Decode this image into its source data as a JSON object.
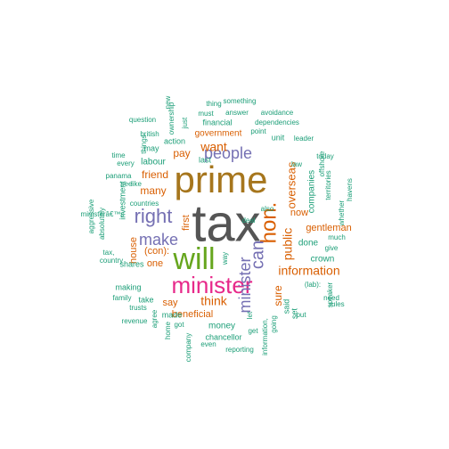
{
  "colors": {
    "dark_gray": "#555555",
    "gold": "#a6761d",
    "green": "#66a61e",
    "magenta": "#e7298a",
    "purple": "#7570b3",
    "orange": "#d95f02",
    "teal": "#1b9e77"
  },
  "words": [
    {
      "text": "tax",
      "color": "dark_gray",
      "rotated": false
    },
    {
      "text": "prime",
      "color": "gold",
      "rotated": false
    },
    {
      "text": "will",
      "color": "green",
      "rotated": false
    },
    {
      "text": "minister",
      "color": "magenta",
      "rotated": false
    },
    {
      "text": "hon.",
      "color": "orange",
      "rotated": true
    },
    {
      "text": "right",
      "color": "purple",
      "rotated": false
    },
    {
      "text": "people",
      "color": "purple",
      "rotated": false
    },
    {
      "text": "can",
      "color": "purple",
      "rotated": true
    },
    {
      "text": "make",
      "color": "purple",
      "rotated": false
    },
    {
      "text": "minister",
      "color": "purple",
      "rotated": true
    },
    {
      "text": "information",
      "color": "orange",
      "rotated": false
    },
    {
      "text": "want",
      "color": "orange",
      "rotated": false
    },
    {
      "text": "public",
      "color": "orange",
      "rotated": true
    },
    {
      "text": "think",
      "color": "orange",
      "rotated": false
    },
    {
      "text": "overseas",
      "color": "orange",
      "rotated": true
    },
    {
      "text": "many",
      "color": "orange",
      "rotated": false
    },
    {
      "text": "friend",
      "color": "orange",
      "rotated": false
    },
    {
      "text": "pay",
      "color": "orange",
      "rotated": false
    },
    {
      "text": "sure",
      "color": "orange",
      "rotated": true
    },
    {
      "text": "say",
      "color": "orange",
      "rotated": false
    },
    {
      "text": "(con):",
      "color": "orange",
      "rotated": false
    },
    {
      "text": "one",
      "color": "orange",
      "rotated": false
    },
    {
      "text": "house",
      "color": "orange",
      "rotated": true
    },
    {
      "text": "now",
      "color": "orange",
      "rotated": false
    },
    {
      "text": "gentleman",
      "color": "orange",
      "rotated": false
    },
    {
      "text": "first",
      "color": "orange",
      "rotated": true
    },
    {
      "text": "beneficial",
      "color": "orange",
      "rotated": false
    },
    {
      "text": "government",
      "color": "orange",
      "rotated": false
    },
    {
      "text": "labour",
      "color": "teal",
      "rotated": false
    },
    {
      "text": "companies",
      "color": "teal",
      "rotated": true
    },
    {
      "text": "done",
      "color": "teal",
      "rotated": false
    },
    {
      "text": "crown",
      "color": "teal",
      "rotated": false
    },
    {
      "text": "money",
      "color": "teal",
      "rotated": false
    },
    {
      "text": "set",
      "color": "teal",
      "rotated": true
    },
    {
      "text": "said",
      "color": "teal",
      "rotated": true
    },
    {
      "text": "unit",
      "color": "teal",
      "rotated": false
    },
    {
      "text": "chancellor",
      "color": "teal",
      "rotated": false
    },
    {
      "text": "investment",
      "color": "teal",
      "rotated": true
    },
    {
      "text": "shares",
      "color": "teal",
      "rotated": false
    },
    {
      "text": "making",
      "color": "teal",
      "rotated": false
    },
    {
      "text": "take",
      "color": "teal",
      "rotated": false
    },
    {
      "text": "made",
      "color": "teal",
      "rotated": false
    },
    {
      "text": "last",
      "color": "teal",
      "rotated": false
    },
    {
      "text": "action",
      "color": "teal",
      "rotated": false
    },
    {
      "text": "may",
      "color": "teal",
      "rotated": false
    },
    {
      "text": "financial",
      "color": "teal",
      "rotated": false
    },
    {
      "text": "dependencies",
      "color": "teal",
      "rotated": false
    },
    {
      "text": "point",
      "color": "teal",
      "rotated": false
    },
    {
      "text": "avoidance",
      "color": "teal",
      "rotated": false
    },
    {
      "text": "answer",
      "color": "teal",
      "rotated": false
    },
    {
      "text": "must",
      "color": "teal",
      "rotated": false
    },
    {
      "text": "something",
      "color": "teal",
      "rotated": false
    },
    {
      "text": "thing",
      "color": "teal",
      "rotated": false
    },
    {
      "text": "new",
      "color": "teal",
      "rotated": true
    },
    {
      "text": "ownership",
      "color": "teal",
      "rotated": true
    },
    {
      "text": "just",
      "color": "teal",
      "rotated": true
    },
    {
      "text": "question",
      "color": "teal",
      "rotated": false
    },
    {
      "text": "british",
      "color": "teal",
      "rotated": false
    },
    {
      "text": "things",
      "color": "teal",
      "rotated": true
    },
    {
      "text": "time",
      "color": "teal",
      "rotated": false
    },
    {
      "text": "every",
      "color": "teal",
      "rotated": false
    },
    {
      "text": "panama",
      "color": "teal",
      "rotated": false
    },
    {
      "text": "see",
      "color": "teal",
      "rotated": false
    },
    {
      "text": "like",
      "color": "teal",
      "rotated": false
    },
    {
      "text": "ministerâ€™s",
      "color": "teal",
      "rotated": false
    },
    {
      "text": "countries",
      "color": "teal",
      "rotated": false
    },
    {
      "text": "aggressive",
      "color": "teal",
      "rotated": true
    },
    {
      "text": "absolutely",
      "color": "teal",
      "rotated": true
    },
    {
      "text": "tax,",
      "color": "teal",
      "rotated": false
    },
    {
      "text": "country",
      "color": "teal",
      "rotated": false
    },
    {
      "text": "family",
      "color": "teal",
      "rotated": false
    },
    {
      "text": "trusts",
      "color": "teal",
      "rotated": false
    },
    {
      "text": "revenue",
      "color": "teal",
      "rotated": false
    },
    {
      "text": "agree",
      "color": "teal",
      "rotated": true
    },
    {
      "text": "home",
      "color": "teal",
      "rotated": true
    },
    {
      "text": "got",
      "color": "teal",
      "rotated": false
    },
    {
      "text": "company",
      "color": "teal",
      "rotated": true
    },
    {
      "text": "even",
      "color": "teal",
      "rotated": false
    },
    {
      "text": "reporting",
      "color": "teal",
      "rotated": false
    },
    {
      "text": "information,",
      "color": "teal",
      "rotated": true
    },
    {
      "text": "get",
      "color": "teal",
      "rotated": false
    },
    {
      "text": "going",
      "color": "teal",
      "rotated": true
    },
    {
      "text": "let",
      "color": "teal",
      "rotated": true
    },
    {
      "text": "way",
      "color": "teal",
      "rotated": true
    },
    {
      "text": "deal",
      "color": "teal",
      "rotated": false
    },
    {
      "text": "also",
      "color": "teal",
      "rotated": false
    },
    {
      "text": "leader",
      "color": "teal",
      "rotated": false
    },
    {
      "text": "law",
      "color": "teal",
      "rotated": false
    },
    {
      "text": "offshore",
      "color": "teal",
      "rotated": true
    },
    {
      "text": "today",
      "color": "teal",
      "rotated": false
    },
    {
      "text": "territories",
      "color": "teal",
      "rotated": true
    },
    {
      "text": "whether",
      "color": "teal",
      "rotated": true
    },
    {
      "text": "havens",
      "color": "teal",
      "rotated": true
    },
    {
      "text": "much",
      "color": "teal",
      "rotated": false
    },
    {
      "text": "give",
      "color": "teal",
      "rotated": false
    },
    {
      "text": "rules",
      "color": "teal",
      "rotated": false
    },
    {
      "text": "need",
      "color": "teal",
      "rotated": false
    },
    {
      "text": "(lab):",
      "color": "teal",
      "rotated": false
    },
    {
      "text": "put",
      "color": "teal",
      "rotated": false
    },
    {
      "text": "speaker",
      "color": "teal",
      "rotated": true
    }
  ]
}
